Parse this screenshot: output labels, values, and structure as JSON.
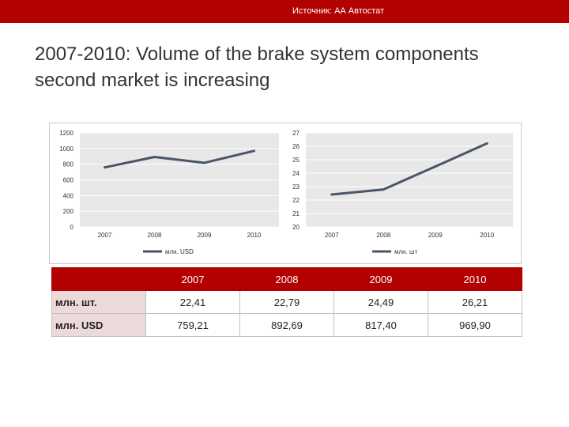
{
  "header": {
    "source": "Источник: АА Автостат"
  },
  "slide": {
    "title": "2007-2010: Volume of the brake system components second market is increasing"
  },
  "chart_data": [
    {
      "type": "line",
      "x": [
        "2007",
        "2008",
        "2009",
        "2010"
      ],
      "series": [
        {
          "name": "млн. USD",
          "values": [
            759.21,
            892.69,
            817.4,
            969.9
          ]
        }
      ],
      "yticks": [
        0,
        200,
        400,
        600,
        800,
        1000,
        1200
      ],
      "ylim": [
        0,
        1200
      ],
      "legend": "bottom",
      "colors": {
        "line": "#4a5568",
        "plot_bg": "#e8e8e8",
        "grid": "#ffffff"
      }
    },
    {
      "type": "line",
      "x": [
        "2007",
        "2008",
        "2009",
        "2010"
      ],
      "series": [
        {
          "name": "млн. шт",
          "values": [
            22.41,
            22.79,
            24.49,
            26.21
          ]
        }
      ],
      "yticks": [
        20,
        21,
        22,
        23,
        24,
        25,
        26,
        27
      ],
      "ylim": [
        20,
        27
      ],
      "legend": "bottom",
      "colors": {
        "line": "#4a5568",
        "plot_bg": "#e8e8e8",
        "grid": "#ffffff"
      }
    }
  ],
  "table": {
    "columns": [
      "",
      "2007",
      "2008",
      "2009",
      "2010"
    ],
    "rows": [
      {
        "label": "млн. шт.",
        "values": [
          "22,41",
          "22,79",
          "24,49",
          "26,21"
        ]
      },
      {
        "label": "млн. USD",
        "values": [
          "759,21",
          "892,69",
          "817,40",
          "969,90"
        ]
      }
    ]
  }
}
